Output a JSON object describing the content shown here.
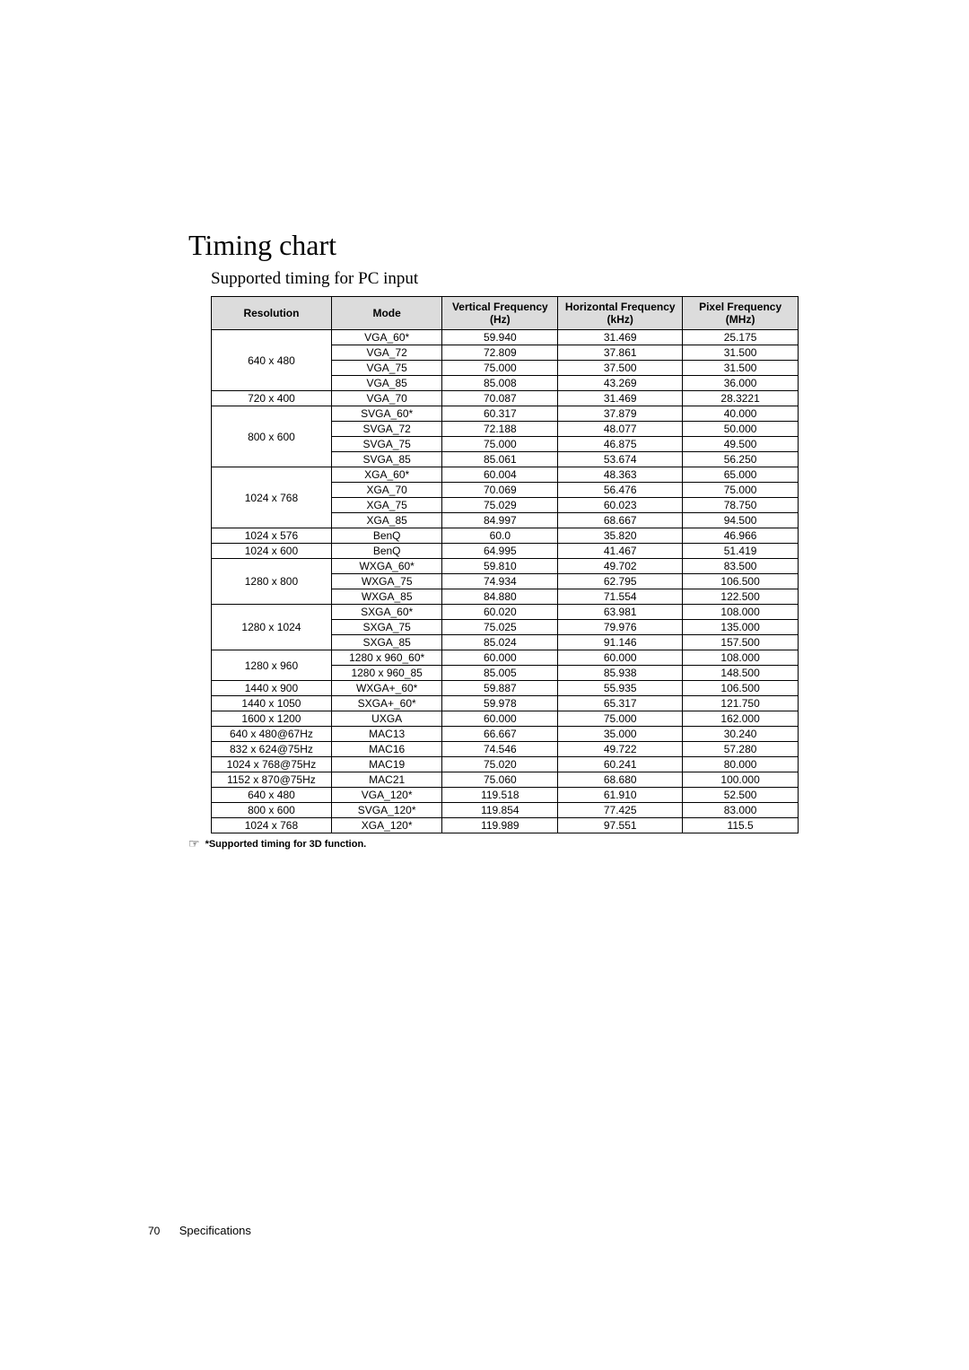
{
  "heading": {
    "title": "Timing chart",
    "subtitle": "Supported timing for PC input"
  },
  "table": {
    "background_color": "#ffffff",
    "header_bg_color": "#dcdcdc",
    "border_color": "#000000",
    "font_size": 12,
    "columns": [
      "Resolution",
      "Mode",
      "Vertical Frequency (Hz)",
      "Horizontal Frequency (kHz)",
      "Pixel Frequency (MHz)"
    ],
    "groups": [
      {
        "resolution": "640 x 480",
        "rows": [
          {
            "mode": "VGA_60*",
            "vfreq": "59.940",
            "hfreq": "31.469",
            "pfreq": "25.175"
          },
          {
            "mode": "VGA_72",
            "vfreq": "72.809",
            "hfreq": "37.861",
            "pfreq": "31.500"
          },
          {
            "mode": "VGA_75",
            "vfreq": "75.000",
            "hfreq": "37.500",
            "pfreq": "31.500"
          },
          {
            "mode": "VGA_85",
            "vfreq": "85.008",
            "hfreq": "43.269",
            "pfreq": "36.000"
          }
        ]
      },
      {
        "resolution": "720 x 400",
        "rows": [
          {
            "mode": "VGA_70",
            "vfreq": "70.087",
            "hfreq": "31.469",
            "pfreq": "28.3221"
          }
        ]
      },
      {
        "resolution": "800 x 600",
        "rows": [
          {
            "mode": "SVGA_60*",
            "vfreq": "60.317",
            "hfreq": "37.879",
            "pfreq": "40.000"
          },
          {
            "mode": "SVGA_72",
            "vfreq": "72.188",
            "hfreq": "48.077",
            "pfreq": "50.000"
          },
          {
            "mode": "SVGA_75",
            "vfreq": "75.000",
            "hfreq": "46.875",
            "pfreq": "49.500"
          },
          {
            "mode": "SVGA_85",
            "vfreq": "85.061",
            "hfreq": "53.674",
            "pfreq": "56.250"
          }
        ]
      },
      {
        "resolution": "1024 x 768",
        "rows": [
          {
            "mode": "XGA_60*",
            "vfreq": "60.004",
            "hfreq": "48.363",
            "pfreq": "65.000"
          },
          {
            "mode": "XGA_70",
            "vfreq": "70.069",
            "hfreq": "56.476",
            "pfreq": "75.000"
          },
          {
            "mode": "XGA_75",
            "vfreq": "75.029",
            "hfreq": "60.023",
            "pfreq": "78.750"
          },
          {
            "mode": "XGA_85",
            "vfreq": "84.997",
            "hfreq": "68.667",
            "pfreq": "94.500"
          }
        ]
      },
      {
        "resolution": "1024 x 576",
        "rows": [
          {
            "mode": "BenQ",
            "vfreq": "60.0",
            "hfreq": "35.820",
            "pfreq": "46.966"
          }
        ]
      },
      {
        "resolution": "1024 x 600",
        "rows": [
          {
            "mode": "BenQ",
            "vfreq": "64.995",
            "hfreq": "41.467",
            "pfreq": "51.419"
          }
        ]
      },
      {
        "resolution": "1280 x 800",
        "rows": [
          {
            "mode": "WXGA_60*",
            "vfreq": "59.810",
            "hfreq": "49.702",
            "pfreq": "83.500"
          },
          {
            "mode": "WXGA_75",
            "vfreq": "74.934",
            "hfreq": "62.795",
            "pfreq": "106.500"
          },
          {
            "mode": "WXGA_85",
            "vfreq": "84.880",
            "hfreq": "71.554",
            "pfreq": "122.500"
          }
        ]
      },
      {
        "resolution": "1280 x 1024",
        "rows": [
          {
            "mode": "SXGA_60*",
            "vfreq": "60.020",
            "hfreq": "63.981",
            "pfreq": "108.000"
          },
          {
            "mode": "SXGA_75",
            "vfreq": "75.025",
            "hfreq": "79.976",
            "pfreq": "135.000"
          },
          {
            "mode": "SXGA_85",
            "vfreq": "85.024",
            "hfreq": "91.146",
            "pfreq": "157.500"
          }
        ]
      },
      {
        "resolution": "1280 x 960",
        "rows": [
          {
            "mode": "1280 x 960_60*",
            "vfreq": "60.000",
            "hfreq": "60.000",
            "pfreq": "108.000"
          },
          {
            "mode": "1280 x 960_85",
            "vfreq": "85.005",
            "hfreq": "85.938",
            "pfreq": "148.500"
          }
        ]
      },
      {
        "resolution": "1440 x 900",
        "rows": [
          {
            "mode": "WXGA+_60*",
            "vfreq": "59.887",
            "hfreq": "55.935",
            "pfreq": "106.500"
          }
        ]
      },
      {
        "resolution": "1440 x 1050",
        "rows": [
          {
            "mode": "SXGA+_60*",
            "vfreq": "59.978",
            "hfreq": "65.317",
            "pfreq": "121.750"
          }
        ]
      },
      {
        "resolution": "1600 x 1200",
        "rows": [
          {
            "mode": "UXGA",
            "vfreq": "60.000",
            "hfreq": "75.000",
            "pfreq": "162.000"
          }
        ]
      },
      {
        "resolution": "640 x 480@67Hz",
        "rows": [
          {
            "mode": "MAC13",
            "vfreq": "66.667",
            "hfreq": "35.000",
            "pfreq": "30.240"
          }
        ]
      },
      {
        "resolution": "832 x 624@75Hz",
        "rows": [
          {
            "mode": "MAC16",
            "vfreq": "74.546",
            "hfreq": "49.722",
            "pfreq": "57.280"
          }
        ]
      },
      {
        "resolution": "1024 x 768@75Hz",
        "rows": [
          {
            "mode": "MAC19",
            "vfreq": "75.020",
            "hfreq": "60.241",
            "pfreq": "80.000"
          }
        ]
      },
      {
        "resolution": "1152 x 870@75Hz",
        "rows": [
          {
            "mode": "MAC21",
            "vfreq": "75.060",
            "hfreq": "68.680",
            "pfreq": "100.000"
          }
        ]
      },
      {
        "resolution": "640 x 480",
        "rows": [
          {
            "mode": "VGA_120*",
            "vfreq": "119.518",
            "hfreq": "61.910",
            "pfreq": "52.500"
          }
        ]
      },
      {
        "resolution": "800 x 600",
        "rows": [
          {
            "mode": "SVGA_120*",
            "vfreq": "119.854",
            "hfreq": "77.425",
            "pfreq": "83.000"
          }
        ]
      },
      {
        "resolution": "1024 x 768",
        "rows": [
          {
            "mode": "XGA_120*",
            "vfreq": "119.989",
            "hfreq": "97.551",
            "pfreq": "115.5"
          }
        ]
      }
    ]
  },
  "footnote": {
    "icon": "☞",
    "text": "*Supported timing for 3D function."
  },
  "footer": {
    "page_number": "70",
    "section": "Specifications"
  }
}
